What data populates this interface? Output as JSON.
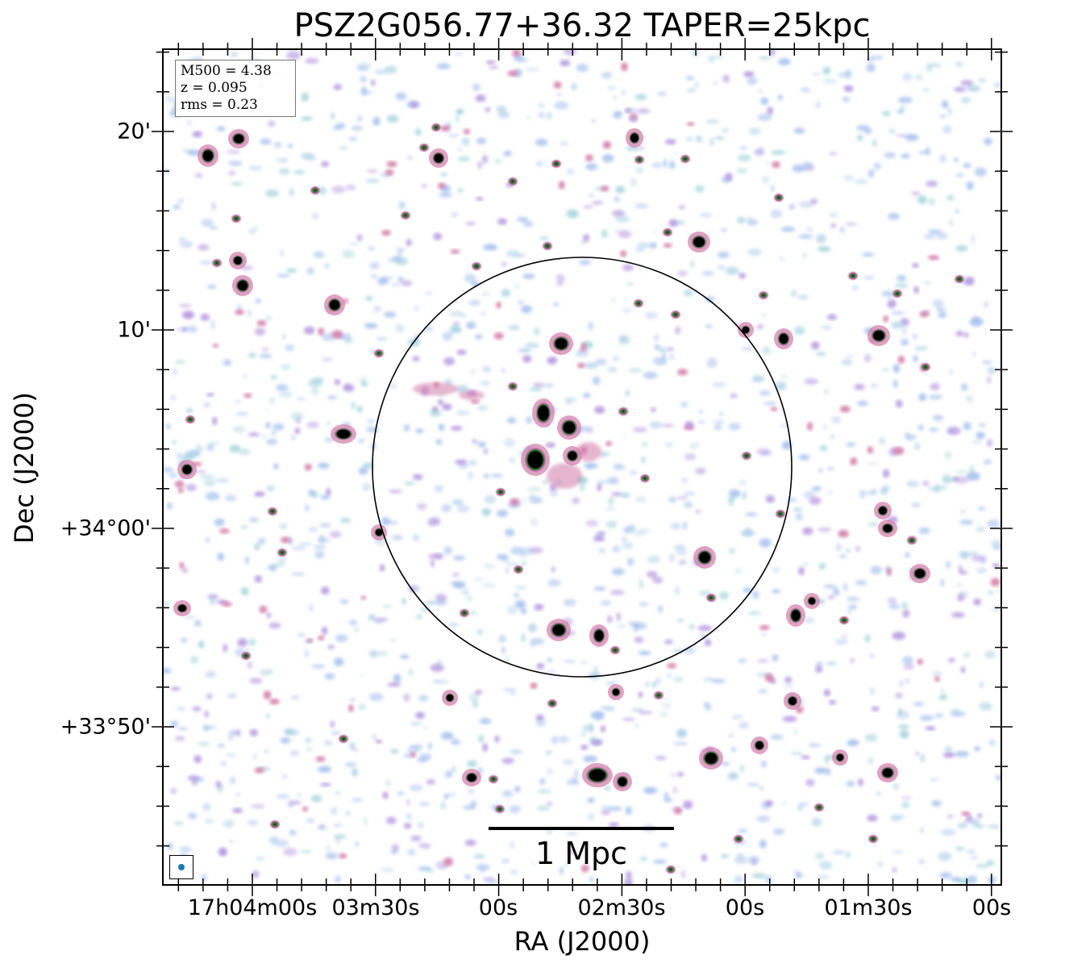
{
  "title": "PSZ2G056.77+36.32 TAPER=25kpc",
  "axes": {
    "xlabel": "RA (J2000)",
    "ylabel": "Dec (J2000)"
  },
  "x_ticks": [
    "17h04m00s",
    "03m30s",
    "00s",
    "02m30s",
    "00s",
    "01m30s",
    "00s"
  ],
  "y_ticks": [
    "20'",
    "10'",
    "+34°00'",
    "+33°50'"
  ],
  "info": {
    "m500": "M500 = 4.38",
    "z": "z = 0.095",
    "rms": "rms = 0.23"
  },
  "scalebar": {
    "label": "1 Mpc"
  },
  "colors": {
    "faint_emission": "#aac4ee",
    "medium_emission": "#b699e0",
    "strong_emission": "#d27aa6",
    "core": "#000000",
    "core_rim": "#2e7d32",
    "beam": "#1f77b4"
  },
  "image_content": {
    "description_type": "radio continuum map",
    "reference_circle": true
  }
}
